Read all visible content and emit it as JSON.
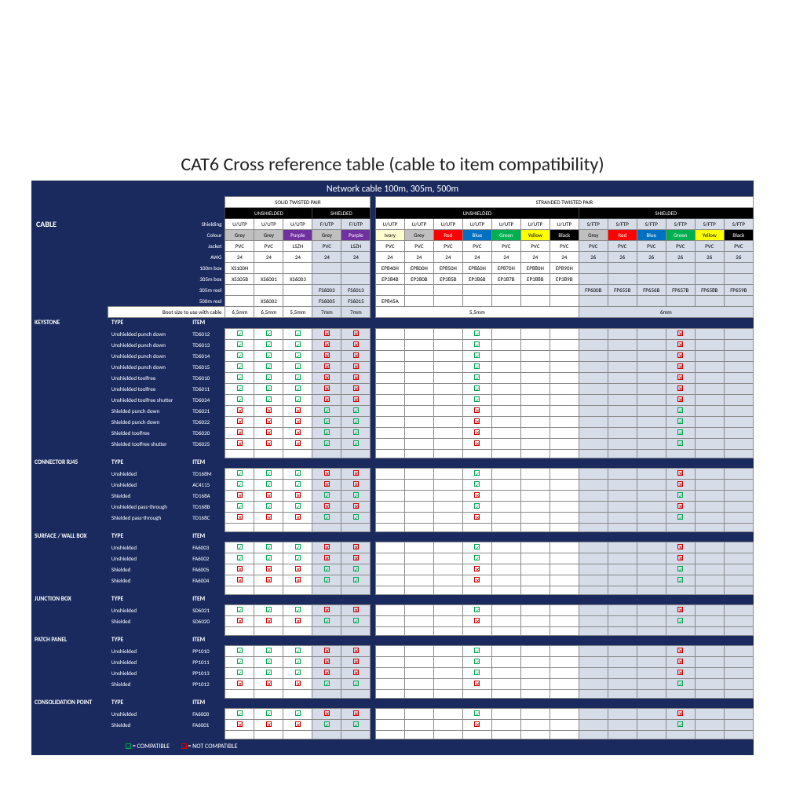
{
  "title": "CAT6 Cross reference table (cable to item compatibility)",
  "subtitle": "Network cable 100m, 305m, 500m",
  "legend": {
    "ok": "= COMPATIBLE",
    "no": "= NOT COMPATIBLE"
  },
  "header_rows": [
    {
      "label": "Shielding",
      "solid": [
        "U/UTP",
        "U/UTP",
        "U/UTP",
        "F/UTP",
        "F/UTP"
      ],
      "stranded": [
        "U/UTP",
        "U/UTP",
        "U/UTP",
        "U/UTP",
        "U/UTP",
        "U/UTP",
        "U/UTP",
        "S/FTP",
        "S/FTP",
        "S/FTP",
        "S/FTP",
        "S/FTP",
        "S/FTP"
      ]
    },
    {
      "label": "Colour",
      "solid_cls": [
        "c-grey",
        "c-grey",
        "c-purple",
        "c-grey",
        "c-purple"
      ],
      "solid": [
        "Grey",
        "Grey",
        "Purple",
        "Grey",
        "Purple"
      ],
      "stranded_cls": [
        "c-ivory",
        "c-grey",
        "c-red",
        "c-blue",
        "c-green",
        "c-yellow",
        "c-black",
        "c-grey",
        "c-red",
        "c-blue",
        "c-green",
        "c-yellow",
        "c-black"
      ],
      "stranded": [
        "Ivory",
        "Grey",
        "Red",
        "Blue",
        "Green",
        "Yellow",
        "Black",
        "Grey",
        "Red",
        "Blue",
        "Green",
        "Yellow",
        "Black"
      ]
    },
    {
      "label": "Jacket",
      "solid": [
        "PVC",
        "PVC",
        "LSZH",
        "PVC",
        "LSZH"
      ],
      "stranded": [
        "PVC",
        "PVC",
        "PVC",
        "PVC",
        "PVC",
        "PVC",
        "PVC",
        "PVC",
        "PVC",
        "PVC",
        "PVC",
        "PVC",
        "PVC"
      ]
    },
    {
      "label": "AWG",
      "solid": [
        "24",
        "24",
        "24",
        "24",
        "24"
      ],
      "stranded": [
        "24",
        "24",
        "24",
        "24",
        "24",
        "24",
        "24",
        "26",
        "26",
        "26",
        "26",
        "26",
        "26"
      ]
    },
    {
      "label": "100m box",
      "solid": [
        "XS100H",
        "",
        "",
        "",
        ""
      ],
      "stranded": [
        "EP840H",
        "EP800H",
        "EP850H",
        "EP860H",
        "EP870H",
        "EP880H",
        "EP890H",
        "",
        "",
        "",
        "",
        "",
        ""
      ]
    },
    {
      "label": "305m box",
      "solid": [
        "XS305B",
        "XS6001",
        "XS6003",
        "",
        ""
      ],
      "stranded": [
        "EP384B",
        "EP380B",
        "EP385B",
        "EP386B",
        "EP387B",
        "EP388B",
        "EP389B",
        "",
        "",
        "",
        "",
        "",
        ""
      ]
    },
    {
      "label": "305m reel",
      "solid": [
        "",
        "",
        "",
        "FS6003",
        "FS6013"
      ],
      "stranded": [
        "",
        "",
        "",
        "",
        "",
        "",
        "",
        "FP600B",
        "FP655B",
        "FP656B",
        "FP657B",
        "FP658B",
        "FP659B"
      ]
    },
    {
      "label": "500m reel",
      "solid": [
        "",
        "XS6002",
        "",
        "FS6005",
        "FS6015"
      ],
      "stranded": [
        "EP845A",
        "",
        "",
        "",
        "",
        "",
        "",
        "",
        "",
        "",
        "",
        "",
        ""
      ]
    }
  ],
  "boot_row": {
    "label": "Boot size to use with cable",
    "solid": [
      "6,5mm",
      "6,5mm",
      "5,5mm",
      "7mm",
      "7mm"
    ],
    "stranded_unsh": "5,5mm",
    "stranded_sh": "6mm"
  },
  "sections": [
    {
      "name": "KEYSTONE",
      "rows": [
        {
          "type": "Unshielded punch down",
          "item": "TD6012",
          "solid": [
            "y",
            "y",
            "y",
            "n",
            "n"
          ],
          "str_u": "y",
          "str_s": "n"
        },
        {
          "type": "Unshielded punch down",
          "item": "TD6013",
          "solid": [
            "y",
            "y",
            "y",
            "n",
            "n"
          ],
          "str_u": "y",
          "str_s": "n"
        },
        {
          "type": "Unshielded punch down",
          "item": "TD6014",
          "solid": [
            "y",
            "y",
            "y",
            "n",
            "n"
          ],
          "str_u": "y",
          "str_s": "n"
        },
        {
          "type": "Unshielded punch down",
          "item": "TD6015",
          "solid": [
            "y",
            "y",
            "y",
            "n",
            "n"
          ],
          "str_u": "y",
          "str_s": "n"
        },
        {
          "type": "Unshielded toolfree",
          "item": "TD6010",
          "solid": [
            "y",
            "y",
            "y",
            "n",
            "n"
          ],
          "str_u": "y",
          "str_s": "n"
        },
        {
          "type": "Unshielded toolfree",
          "item": "TD6011",
          "solid": [
            "y",
            "y",
            "y",
            "n",
            "n"
          ],
          "str_u": "y",
          "str_s": "n"
        },
        {
          "type": "Unshielded toolfree shutter",
          "item": "TD6024",
          "solid": [
            "y",
            "y",
            "y",
            "n",
            "n"
          ],
          "str_u": "y",
          "str_s": "n"
        },
        {
          "type": "Shielded punch down",
          "item": "TD6021",
          "solid": [
            "n",
            "n",
            "n",
            "y",
            "y"
          ],
          "str_u": "n",
          "str_s": "y"
        },
        {
          "type": "Shielded punch down",
          "item": "TD6022",
          "solid": [
            "n",
            "n",
            "n",
            "y",
            "y"
          ],
          "str_u": "n",
          "str_s": "y"
        },
        {
          "type": "Shielded toolfree",
          "item": "TD6020",
          "solid": [
            "n",
            "n",
            "n",
            "y",
            "y"
          ],
          "str_u": "n",
          "str_s": "y"
        },
        {
          "type": "Shielded toolfree shutter",
          "item": "TD6025",
          "solid": [
            "n",
            "n",
            "n",
            "y",
            "y"
          ],
          "str_u": "n",
          "str_s": "y"
        }
      ]
    },
    {
      "name": "CONNECTOR RJ45",
      "rows": [
        {
          "type": "Unshielded",
          "item": "TD168M",
          "solid": [
            "y",
            "y",
            "y",
            "n",
            "n"
          ],
          "str_u": "y",
          "str_s": "n"
        },
        {
          "type": "Unshielded",
          "item": "AC4115",
          "solid": [
            "y",
            "y",
            "y",
            "n",
            "n"
          ],
          "str_u": "y",
          "str_s": "n"
        },
        {
          "type": "Shielded",
          "item": "TD168A",
          "solid": [
            "n",
            "n",
            "n",
            "y",
            "y"
          ],
          "str_u": "n",
          "str_s": "y"
        },
        {
          "type": "Unshielded pass-through",
          "item": "TD168B",
          "solid": [
            "y",
            "y",
            "y",
            "n",
            "n"
          ],
          "str_u": "y",
          "str_s": "n"
        },
        {
          "type": "Shielded pass-through",
          "item": "TD168C",
          "solid": [
            "n",
            "n",
            "n",
            "y",
            "y"
          ],
          "str_u": "n",
          "str_s": "y"
        }
      ]
    },
    {
      "name": "SURFACE / WALL BOX",
      "rows": [
        {
          "type": "Unshielded",
          "item": "FA6003",
          "solid": [
            "y",
            "y",
            "y",
            "n",
            "n"
          ],
          "str_u": "y",
          "str_s": "n"
        },
        {
          "type": "Unshielded",
          "item": "FA6002",
          "solid": [
            "y",
            "y",
            "y",
            "n",
            "n"
          ],
          "str_u": "y",
          "str_s": "n"
        },
        {
          "type": "Shielded",
          "item": "FA6005",
          "solid": [
            "n",
            "n",
            "n",
            "y",
            "y"
          ],
          "str_u": "n",
          "str_s": "y"
        },
        {
          "type": "Shielded",
          "item": "FA6004",
          "solid": [
            "n",
            "n",
            "n",
            "y",
            "y"
          ],
          "str_u": "n",
          "str_s": "y"
        }
      ]
    },
    {
      "name": "JUNCTION BOX",
      "rows": [
        {
          "type": "Unshielded",
          "item": "SD6021",
          "solid": [
            "y",
            "y",
            "y",
            "n",
            "n"
          ],
          "str_u": "y",
          "str_s": "n"
        },
        {
          "type": "Shielded",
          "item": "SD6020",
          "solid": [
            "n",
            "n",
            "n",
            "y",
            "y"
          ],
          "str_u": "n",
          "str_s": "y"
        }
      ]
    },
    {
      "name": "PATCH PANEL",
      "rows": [
        {
          "type": "Unshielded",
          "item": "PP1010",
          "solid": [
            "y",
            "y",
            "y",
            "n",
            "n"
          ],
          "str_u": "y",
          "str_s": "n"
        },
        {
          "type": "Unshielded",
          "item": "PP1011",
          "solid": [
            "y",
            "y",
            "y",
            "n",
            "n"
          ],
          "str_u": "y",
          "str_s": "n"
        },
        {
          "type": "Unshielded",
          "item": "PP1013",
          "solid": [
            "y",
            "y",
            "y",
            "n",
            "n"
          ],
          "str_u": "y",
          "str_s": "n"
        },
        {
          "type": "Shielded",
          "item": "PP1012",
          "solid": [
            "n",
            "n",
            "n",
            "y",
            "y"
          ],
          "str_u": "n",
          "str_s": "y"
        }
      ]
    },
    {
      "name": "CONSOLIDATION POINT",
      "rows": [
        {
          "type": "Unshielded",
          "item": "FA6000",
          "solid": [
            "y",
            "y",
            "y",
            "n",
            "n"
          ],
          "str_u": "y",
          "str_s": "n"
        },
        {
          "type": "Shielded",
          "item": "FA6001",
          "solid": [
            "n",
            "n",
            "n",
            "y",
            "y"
          ],
          "str_u": "n",
          "str_s": "y"
        }
      ]
    }
  ],
  "group_labels": {
    "solid": "SOLID TWISTED PAIR",
    "stranded": "STRANDED TWISTED PAIR",
    "unshielded": "UNSHIELDED",
    "shielded": "SHIELDED",
    "cable": "CABLE",
    "type": "TYPE",
    "item": "ITEM"
  },
  "colors": {
    "band": "#1a2a5e",
    "shielded_tint": "#d6dce8"
  }
}
